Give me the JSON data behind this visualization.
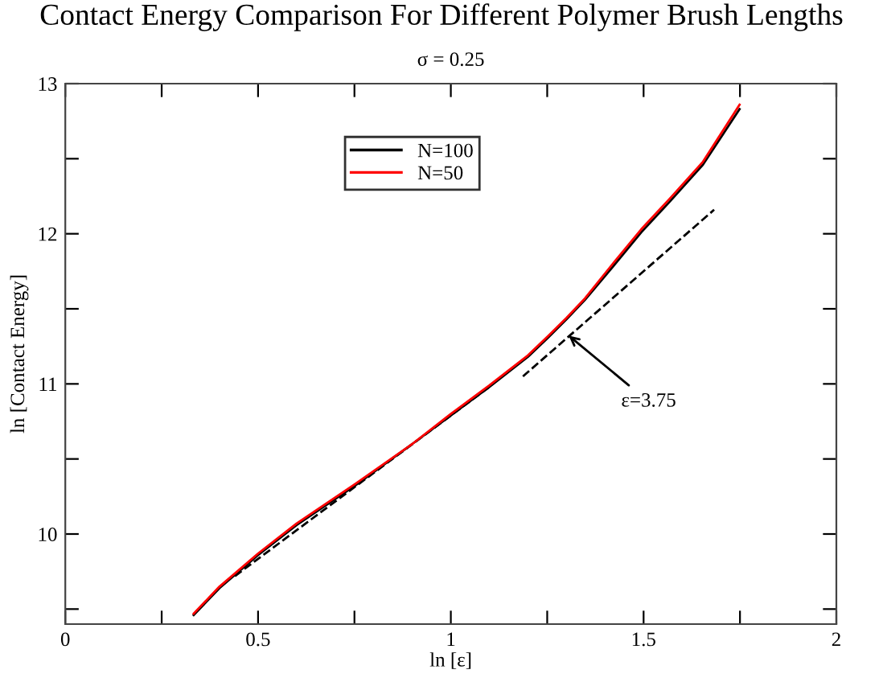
{
  "chart_data": {
    "type": "line",
    "title": "Contact Energy Comparison For Different Polymer Brush Lengths",
    "subtitle": "σ = 0.25",
    "xlabel": "ln [ε]",
    "ylabel": "ln [Contact Energy]",
    "xlim": [
      0,
      2
    ],
    "ylim": [
      9.4,
      13
    ],
    "xticks": [
      0,
      {
        "value": 0.25,
        "label": null
      },
      0.5,
      {
        "value": 0.75,
        "label": null
      },
      1,
      {
        "value": 1.25,
        "label": null
      },
      1.5,
      {
        "value": 1.75,
        "label": null
      },
      2
    ],
    "yticks": [
      {
        "value": 9.5,
        "label": null
      },
      10,
      {
        "value": 10.5,
        "label": null
      },
      11,
      {
        "value": 11.5,
        "label": null
      },
      12,
      {
        "value": 12.5,
        "label": null
      },
      13
    ],
    "legend": "top",
    "grid": false,
    "marker": "none",
    "series": [
      {
        "name": "N=100",
        "color": "#000000",
        "line_style": "solid",
        "x": [
          0.333,
          0.4,
          0.5,
          0.6,
          0.75,
          0.9,
          1.0,
          1.1,
          1.2,
          1.253,
          1.3,
          1.348,
          1.42,
          1.494,
          1.57,
          1.654,
          1.749
        ],
        "values": [
          9.46,
          9.64,
          9.86,
          10.06,
          10.32,
          10.6,
          10.79,
          10.98,
          11.18,
          11.31,
          11.43,
          11.56,
          11.78,
          12.01,
          12.22,
          12.46,
          12.83
        ]
      },
      {
        "name": "N=50",
        "color": "#ff0000",
        "line_style": "solid",
        "x": [
          0.333,
          0.4,
          0.5,
          0.6,
          0.75,
          0.9,
          1.0,
          1.1,
          1.2,
          1.253,
          1.3,
          1.348,
          1.42,
          1.494,
          1.57,
          1.654,
          1.749
        ],
        "values": [
          9.47,
          9.65,
          9.87,
          10.07,
          10.33,
          10.6,
          10.8,
          10.99,
          11.19,
          11.32,
          11.44,
          11.57,
          11.8,
          12.03,
          12.24,
          12.48,
          12.86
        ]
      },
      {
        "color": "#000000",
        "line_style": "dashed",
        "x": [
          0.44,
          1.1
        ],
        "values": [
          9.72,
          10.98
        ]
      },
      {
        "color": "#000000",
        "line_style": "dashed",
        "x": [
          1.187,
          1.683
        ],
        "values": [
          11.05,
          12.16
        ]
      }
    ],
    "annotations": [
      {
        "text": "ε=3.75",
        "x": 1.297,
        "y": 11.34
      }
    ]
  }
}
